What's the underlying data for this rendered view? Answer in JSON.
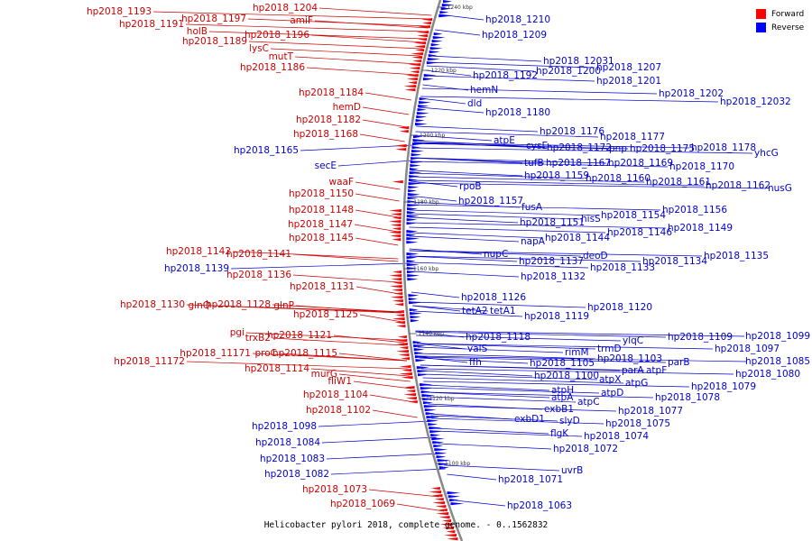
{
  "caption": "Helicobacter pylori 2018, complete genome. - 0..1562832",
  "legend": {
    "forward": {
      "label": "Forward",
      "color": "#ff0000"
    },
    "reverse": {
      "label": "Reverse",
      "color": "#0000ff"
    }
  },
  "colors": {
    "forward_text": "#cc0000",
    "reverse_text": "#0000cc",
    "backbone": "#888888"
  },
  "ticks": [
    "1240 kbp",
    "1220 kbp",
    "1200 kbp",
    "1180 kbp",
    "1160 kbp",
    "1140 kbp",
    "1120 kbp",
    "1100 kbp"
  ],
  "forward_labels": [
    "hp2018_1193",
    "hp2018_1204",
    "hp2018_1197",
    "hp2018_1191",
    "amiF",
    "holB",
    "hp2018_1196",
    "hp2018_1189",
    "lysC",
    "mutT",
    "hp2018_1186",
    "hp2018_1184",
    "hemD",
    "hp2018_1182",
    "hp2018_1168",
    "waaF",
    "hp2018_1150",
    "hp2018_1148",
    "hp2018_1147",
    "hp2018_1145",
    "hp2018_1142",
    "hp2018_1141",
    "hp2018_1136",
    "hp2018_1131",
    "hp2018_1130",
    "glnQ",
    "hp2018_1128",
    "glnP",
    "hp2018_1125",
    "pgi",
    "hp2018_1121",
    "trxB2",
    "hp2018_11171",
    "proC",
    "hp2018_1115",
    "hp2018_11172",
    "hp2018_1114",
    "murG",
    "fliW1",
    "hp2018_1104",
    "hp2018_1102",
    "hp2018_1073",
    "hp2018_1069"
  ],
  "reverse_labels": [
    "hp2018_1210",
    "hp2018_1209",
    "hp2018_12031",
    "hp2018_1207",
    "hp2018_1192",
    "hp2018_1200",
    "hp2018_1201",
    "hp2018_1202",
    "hp2018_12032",
    "hemN",
    "dld",
    "hp2018_1180",
    "hp2018_1176",
    "hp2018_1177",
    "atpE",
    "cysE",
    "hp2018_1172",
    "pnp",
    "hp2018_1175",
    "hp2018_1178",
    "yhcG",
    "hp2018_1165",
    "secE",
    "tufB",
    "hp2018_1167",
    "hp2018_1169",
    "hp2018_1170",
    "hp2018_1159",
    "hp2018_1160",
    "hp2018_1161",
    "hp2018_1162",
    "nusG",
    "rpoB",
    "hp2018_1157",
    "fusA",
    "hp2018_1156",
    "hp2018_1151",
    "hisS",
    "hp2018_1154",
    "hp2018_1149",
    "hp2018_1146",
    "napA",
    "hp2018_1144",
    "nupC",
    "deoD",
    "hp2018_1135",
    "hp2018_1137",
    "hp2018_1134",
    "hp2018_1139",
    "hp2018_1133",
    "hp2018_1132",
    "hp2018_1126",
    "hp2018_1120",
    "tetA2",
    "tetA1",
    "hp2018_1119",
    "hp2018_1118",
    "hp2018_1099",
    "valS",
    "ylqC",
    "hp2018_1109",
    "rimM",
    "trmD",
    "hp2018_1097",
    "ffh",
    "hp2018_1105",
    "hp2018_1103",
    "parB",
    "hp2018_1085",
    "parA",
    "atpF",
    "hp2018_1100",
    "hp2018_1080",
    "atpX",
    "atpG",
    "atpH",
    "atpD",
    "hp2018_1079",
    "atpA",
    "atpC",
    "hp2018_1078",
    "exbB1",
    "hp2018_1077",
    "exbD1",
    "slyD",
    "hp2018_1075",
    "hp2018_1098",
    "flgK",
    "hp2018_1074",
    "hp2018_1084",
    "hp2018_1072",
    "hp2018_1083",
    "uvrB",
    "hp2018_1082",
    "hp2018_1071",
    "hp2018_1063"
  ]
}
